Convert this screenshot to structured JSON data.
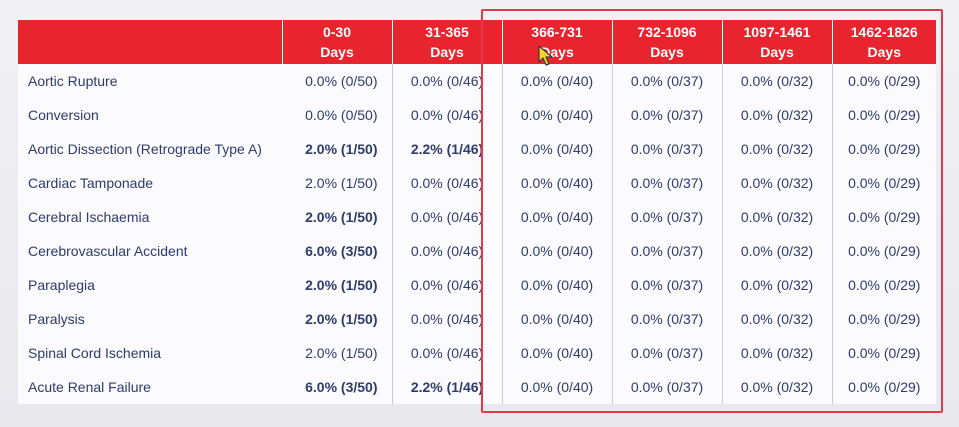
{
  "table": {
    "header": {
      "event": "",
      "columns": [
        {
          "line1": "0-30",
          "line2": "Days"
        },
        {
          "line1": "31-365",
          "line2": "Days"
        },
        {
          "line1": "366-731",
          "line2": "Days"
        },
        {
          "line1": "732-1096",
          "line2": "Days"
        },
        {
          "line1": "1097-1461",
          "line2": "Days"
        },
        {
          "line1": "1462-1826",
          "line2": "Days"
        }
      ]
    },
    "rows": [
      {
        "event": "Aortic Rupture",
        "values": [
          "0.0% (0/50)",
          "0.0% (0/46)",
          "0.0% (0/40)",
          "0.0% (0/37)",
          "0.0% (0/32)",
          "0.0% (0/29)"
        ],
        "bold": [
          false,
          false,
          false,
          false,
          false,
          false
        ]
      },
      {
        "event": "Conversion",
        "values": [
          "0.0% (0/50)",
          "0.0% (0/46)",
          "0.0% (0/40)",
          "0.0% (0/37)",
          "0.0% (0/32)",
          "0.0% (0/29)"
        ],
        "bold": [
          false,
          false,
          false,
          false,
          false,
          false
        ]
      },
      {
        "event": "Aortic Dissection (Retrograde Type A)",
        "values": [
          "2.0% (1/50)",
          "2.2% (1/46)",
          "0.0% (0/40)",
          "0.0% (0/37)",
          "0.0% (0/32)",
          "0.0% (0/29)"
        ],
        "bold": [
          true,
          true,
          false,
          false,
          false,
          false
        ]
      },
      {
        "event": "Cardiac Tamponade",
        "values": [
          "2.0% (1/50)",
          "0.0% (0/46)",
          "0.0% (0/40)",
          "0.0% (0/37)",
          "0.0% (0/32)",
          "0.0% (0/29)"
        ],
        "bold": [
          false,
          false,
          false,
          false,
          false,
          false
        ]
      },
      {
        "event": "Cerebral Ischaemia",
        "values": [
          "2.0% (1/50)",
          "0.0% (0/46)",
          "0.0% (0/40)",
          "0.0% (0/37)",
          "0.0% (0/32)",
          "0.0% (0/29)"
        ],
        "bold": [
          true,
          false,
          false,
          false,
          false,
          false
        ]
      },
      {
        "event": "Cerebrovascular Accident",
        "values": [
          "6.0% (3/50)",
          "0.0% (0/46)",
          "0.0% (0/40)",
          "0.0% (0/37)",
          "0.0% (0/32)",
          "0.0% (0/29)"
        ],
        "bold": [
          true,
          false,
          false,
          false,
          false,
          false
        ]
      },
      {
        "event": "Paraplegia",
        "values": [
          "2.0% (1/50)",
          "0.0% (0/46)",
          "0.0% (0/40)",
          "0.0% (0/37)",
          "0.0% (0/32)",
          "0.0% (0/29)"
        ],
        "bold": [
          true,
          false,
          false,
          false,
          false,
          false
        ]
      },
      {
        "event": "Paralysis",
        "values": [
          "2.0% (1/50)",
          "0.0% (0/46)",
          "0.0% (0/40)",
          "0.0% (0/37)",
          "0.0% (0/32)",
          "0.0% (0/29)"
        ],
        "bold": [
          true,
          false,
          false,
          false,
          false,
          false
        ]
      },
      {
        "event": "Spinal Cord Ischemia",
        "values": [
          "2.0% (1/50)",
          "0.0% (0/46)",
          "0.0% (0/40)",
          "0.0% (0/37)",
          "0.0% (0/32)",
          "0.0% (0/29)"
        ],
        "bold": [
          false,
          false,
          false,
          false,
          false,
          false
        ]
      },
      {
        "event": "Acute Renal Failure",
        "values": [
          "6.0% (3/50)",
          "2.2% (1/46)",
          "0.0% (0/40)",
          "0.0% (0/37)",
          "0.0% (0/32)",
          "0.0% (0/29)"
        ],
        "bold": [
          true,
          true,
          false,
          false,
          false,
          false
        ]
      }
    ]
  },
  "colors": {
    "header_bg": "#e8242f",
    "header_text": "#ffffff",
    "cell_text": "#2e3b6b",
    "highlight_border": "#e23a4a"
  },
  "cursor": {
    "icon": "mouse-pointer-icon"
  }
}
